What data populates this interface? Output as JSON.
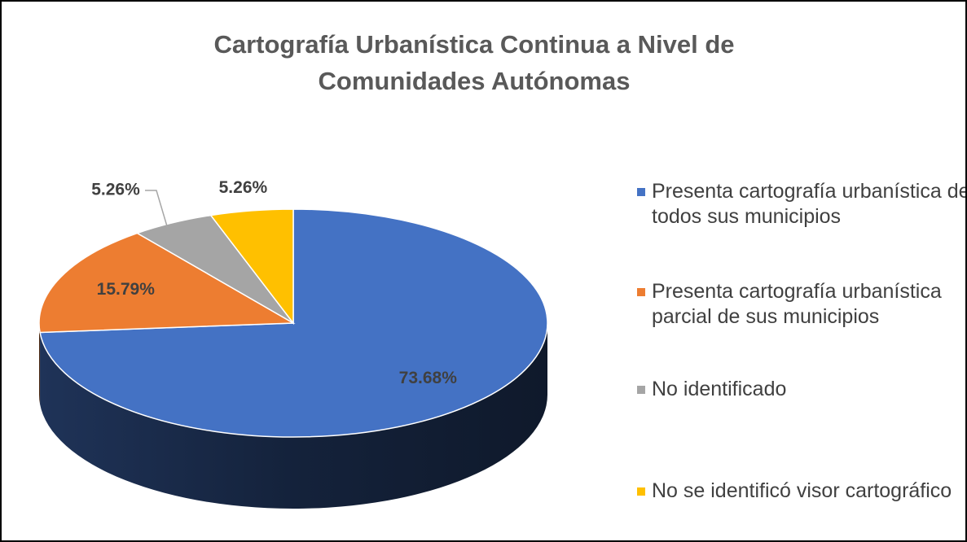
{
  "chart_data": {
    "type": "pie",
    "title": "Cartografía Urbanística Continua a Nivel de Comunidades Autónomas",
    "categories": [
      "Presenta cartografía urbanística de todos sus municipios",
      "Presenta cartografía urbanística parcial de sus municipios",
      "No identificado",
      "No se identificó visor cartográfico"
    ],
    "values": [
      73.68,
      15.79,
      5.26,
      5.26
    ],
    "value_labels": [
      "73.68%",
      "15.79%",
      "5.26%",
      "5.26%"
    ],
    "colors": [
      "#4472c4",
      "#ed7d31",
      "#a5a5a5",
      "#ffc000"
    ],
    "legend": "right"
  }
}
